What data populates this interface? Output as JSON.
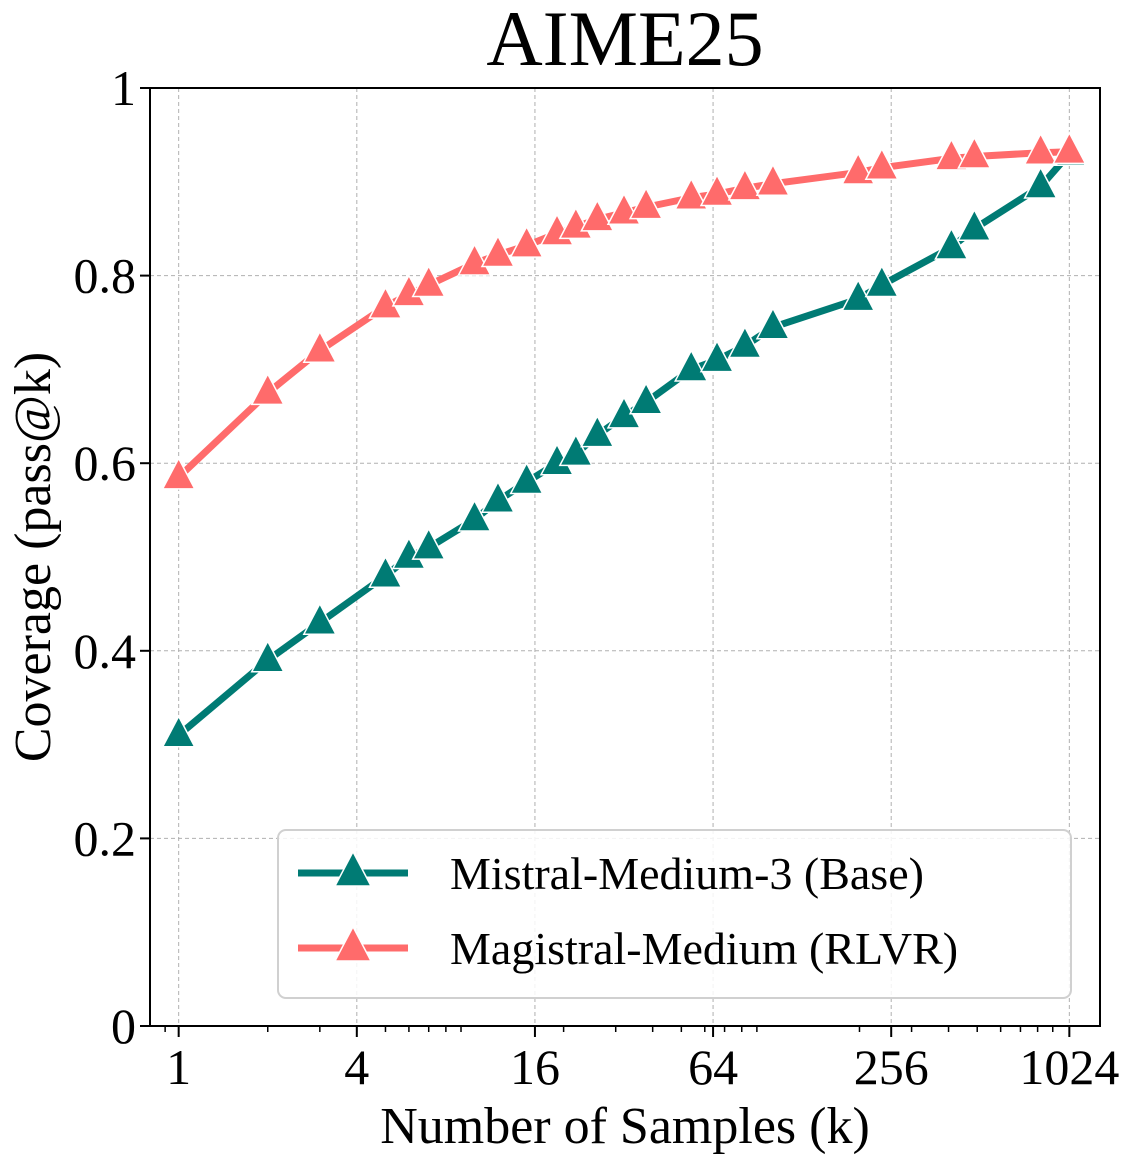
{
  "chart_data": {
    "type": "line",
    "title": "AIME25",
    "xlabel": "Number of Samples (k)",
    "ylabel": "Coverage (pass@k)",
    "x_scale": "log2",
    "xlim": [
      0.8,
      1300
    ],
    "ylim": [
      0,
      1
    ],
    "x_ticks": [
      1,
      4,
      16,
      64,
      256,
      1024
    ],
    "y_ticks": [
      0,
      0.2,
      0.4,
      0.6,
      0.8,
      1
    ],
    "y_tick_labels": [
      "0",
      "0.2",
      "0.4",
      "0.6",
      "0.8",
      "1"
    ],
    "grid": true,
    "legend_position": "lower-right",
    "x": [
      1,
      2,
      3,
      5,
      6,
      7,
      10,
      12,
      15,
      19,
      22,
      26,
      32,
      38,
      54,
      66,
      82,
      102,
      198,
      238,
      409,
      489,
      819,
      1024
    ],
    "series": [
      {
        "name": "Mistral-Medium-3 (Base)",
        "color": "#007b74",
        "marker": "triangle",
        "values": [
          0.31,
          0.39,
          0.43,
          0.48,
          0.5,
          0.51,
          0.54,
          0.56,
          0.58,
          0.6,
          0.61,
          0.63,
          0.65,
          0.665,
          0.7,
          0.71,
          0.725,
          0.745,
          0.775,
          0.79,
          0.83,
          0.85,
          0.895,
          0.93
        ]
      },
      {
        "name": "Magistral-Medium (RLVR)",
        "color": "#ff6b6b",
        "marker": "triangle",
        "values": [
          0.585,
          0.675,
          0.72,
          0.767,
          0.78,
          0.79,
          0.813,
          0.822,
          0.832,
          0.845,
          0.852,
          0.86,
          0.867,
          0.873,
          0.883,
          0.887,
          0.893,
          0.898,
          0.91,
          0.915,
          0.925,
          0.927,
          0.931,
          0.932
        ]
      }
    ]
  }
}
